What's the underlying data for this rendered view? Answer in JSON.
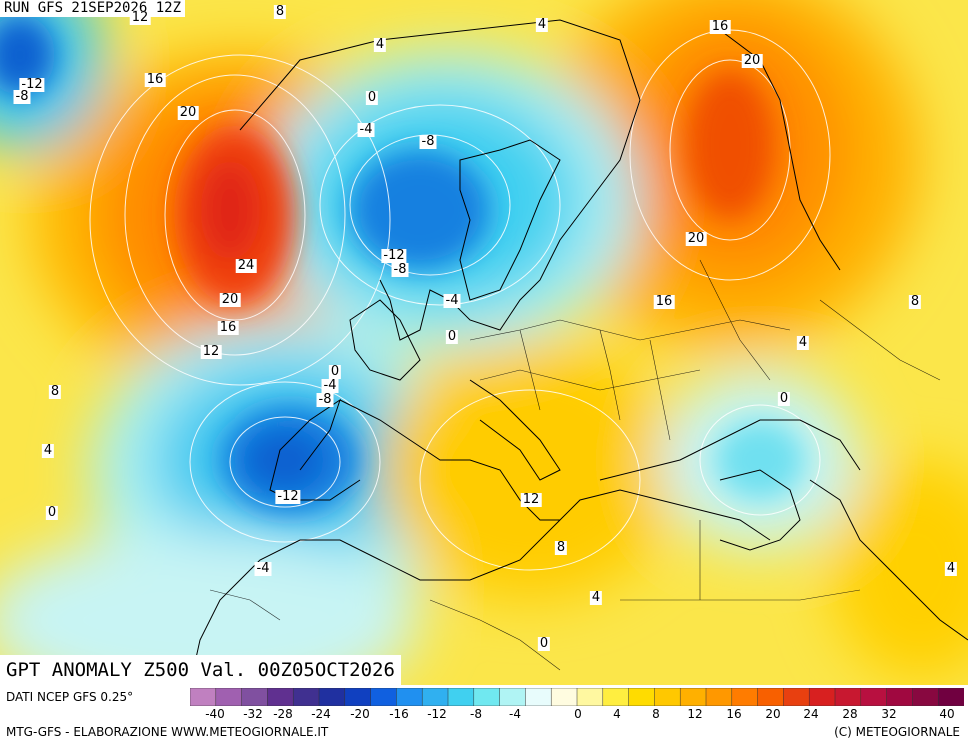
{
  "header": {
    "run": "RUN GFS 21SEP2026 12Z"
  },
  "title": "GPT ANOMALY Z500 Val. 00Z05OCT2026",
  "source": "DATI NCEP GFS 0.25°",
  "footer_left": "MTG-GFS - ELABORAZIONE WWW.METEOGIORNALE.IT",
  "footer_right": "(C) METEOGIORNALE",
  "map_labels": [
    "12",
    "8",
    "4",
    "4",
    "16",
    "20",
    "16",
    "-12",
    "-8",
    "16",
    "20",
    "0",
    "-4",
    "-8",
    "20",
    "24",
    "20",
    "16",
    "-12",
    "-8",
    "-4",
    "16",
    "0",
    "12",
    "8",
    "4",
    "0",
    "-4",
    "-8",
    "8",
    "4",
    "0",
    "-12",
    "12",
    "0",
    "8",
    "-4",
    "4",
    "0",
    "4"
  ],
  "legend_ticks": [
    "-40",
    "-32",
    "-28",
    "-24",
    "-20",
    "-16",
    "-12",
    "-8",
    "-4",
    "0",
    "4",
    "8",
    "12",
    "16",
    "20",
    "24",
    "28",
    "32",
    "40"
  ],
  "legend_colors": [
    "#c080c0",
    "#a060b0",
    "#8050a0",
    "#603090",
    "#403090",
    "#2030a0",
    "#1040c0",
    "#1060e0",
    "#2090f0",
    "#30b0f0",
    "#40d0f0",
    "#70e8f0",
    "#b0f4f4",
    "#e8fcfc",
    "#fffce0",
    "#fff8a0",
    "#ffee40",
    "#ffdc00",
    "#ffc800",
    "#ffb000",
    "#ff9800",
    "#ff7c00",
    "#f86000",
    "#e84010",
    "#d82020",
    "#c81830",
    "#b81040",
    "#a00840",
    "#880840",
    "#700040"
  ],
  "colors": {
    "background": "#fbe64a",
    "contour": "#ffffff",
    "coast": "#000000"
  }
}
